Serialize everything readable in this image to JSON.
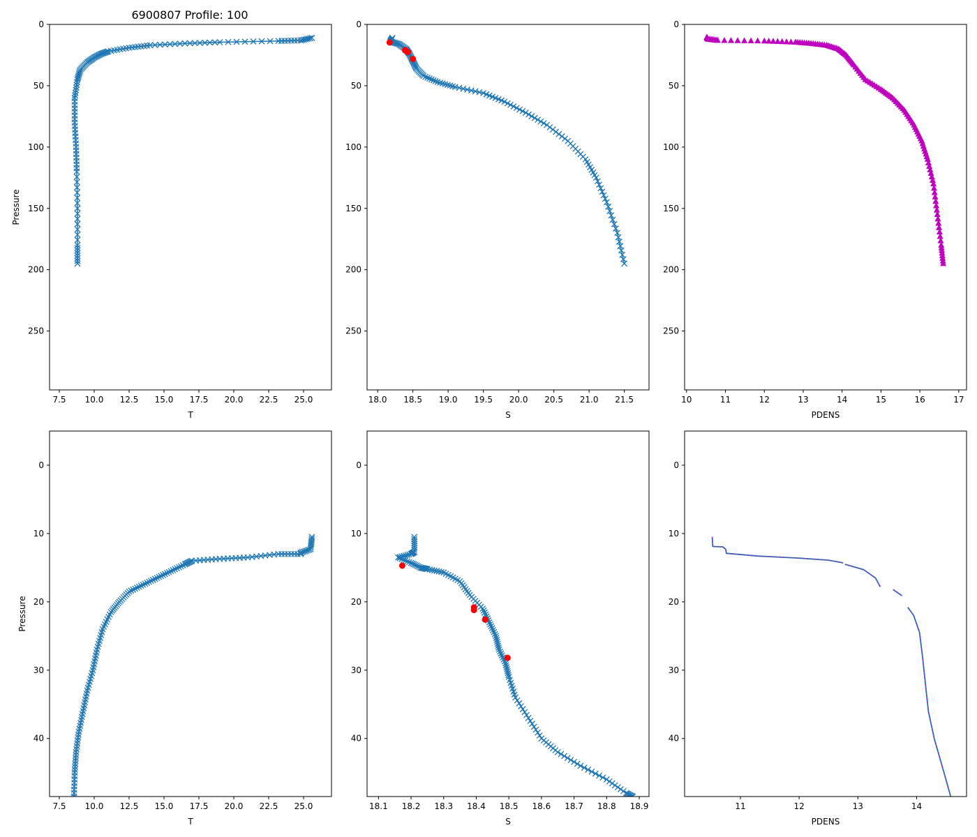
{
  "figure_title": "6900807 Profile: 100",
  "colors": {
    "series": "#1f77b4",
    "flag": "#ff0000",
    "density": "#bf00bf"
  },
  "chart_data": [
    {
      "type": "line",
      "panel": "top-left",
      "marker": "x",
      "xlabel": "T",
      "ylabel": "Pressure",
      "xlim": [
        6.8,
        27.0
      ],
      "ylim": [
        298,
        0
      ],
      "y_inverted": true,
      "xticks": [
        7.5,
        10.0,
        12.5,
        15.0,
        17.5,
        20.0,
        22.5,
        25.0
      ],
      "xtick_labels": [
        "7.5",
        "10.0",
        "12.5",
        "15.0",
        "17.5",
        "20.0",
        "22.5",
        "25.0"
      ],
      "yticks": [
        0,
        50,
        100,
        150,
        200,
        250
      ],
      "ytick_labels": [
        "0",
        "50",
        "100",
        "150",
        "200",
        "250"
      ],
      "series": [
        {
          "name": "T",
          "x": [
            25.6,
            24.8,
            23.2,
            19.0,
            16.5,
            14.0,
            12.5,
            11.0,
            10.5,
            10.0,
            9.5,
            9.0,
            8.8,
            8.6,
            8.6,
            8.7,
            8.75,
            8.8,
            8.8,
            8.8
          ],
          "y": [
            11,
            13,
            13.5,
            14.5,
            15.5,
            17,
            19,
            22,
            24,
            27,
            31,
            37,
            45,
            60,
            80,
            100,
            120,
            150,
            180,
            195
          ]
        }
      ]
    },
    {
      "type": "line",
      "panel": "top-middle",
      "marker": "x",
      "xlabel": "S",
      "ylabel": "",
      "xlim": [
        17.85,
        21.85
      ],
      "ylim": [
        298,
        0
      ],
      "y_inverted": true,
      "xticks": [
        18.0,
        18.5,
        19.0,
        19.5,
        20.0,
        20.5,
        21.0,
        21.5
      ],
      "xtick_labels": [
        "18.0",
        "18.5",
        "19.0",
        "19.5",
        "20.0",
        "20.5",
        "21.0",
        "21.5"
      ],
      "yticks": [
        0,
        50,
        100,
        150,
        200,
        250
      ],
      "ytick_labels": [
        "0",
        "50",
        "100",
        "150",
        "200",
        "250"
      ],
      "series": [
        {
          "name": "S",
          "x": [
            18.21,
            18.18,
            18.3,
            18.4,
            18.45,
            18.5,
            18.55,
            18.65,
            18.85,
            19.1,
            19.5,
            19.8,
            20.1,
            20.4,
            20.7,
            20.95,
            21.1,
            21.25,
            21.4,
            21.5
          ],
          "y": [
            11,
            14,
            16,
            20,
            24,
            30,
            36,
            42,
            47,
            51,
            56,
            63,
            72,
            82,
            95,
            110,
            125,
            145,
            170,
            195
          ]
        }
      ],
      "flags": {
        "name": "flagged",
        "x": [
          18.17,
          18.39,
          18.39,
          18.43,
          18.5
        ],
        "y": [
          14.7,
          20.8,
          21.2,
          22.6,
          28.2
        ]
      }
    },
    {
      "type": "scatter",
      "panel": "top-right",
      "marker": "triangle",
      "xlabel": "PDENS",
      "ylabel": "",
      "xlim": [
        9.95,
        17.2
      ],
      "ylim": [
        298,
        0
      ],
      "y_inverted": true,
      "xticks": [
        10,
        11,
        12,
        13,
        14,
        15,
        16,
        17
      ],
      "xtick_labels": [
        "10",
        "11",
        "12",
        "13",
        "14",
        "15",
        "16",
        "17"
      ],
      "yticks": [
        0,
        50,
        100,
        150,
        200,
        250
      ],
      "ytick_labels": [
        "0",
        "50",
        "100",
        "150",
        "200",
        "250"
      ],
      "series": [
        {
          "name": "PDENS",
          "x": [
            10.52,
            10.55,
            10.8,
            12.0,
            12.8,
            13.2,
            13.6,
            13.9,
            14.1,
            14.3,
            14.6,
            15.0,
            15.3,
            15.6,
            15.85,
            16.05,
            16.2,
            16.35,
            16.45,
            16.55,
            16.6
          ],
          "y": [
            10.5,
            12,
            13,
            13.5,
            14.5,
            15.5,
            17,
            20,
            25,
            33,
            45,
            53,
            60,
            70,
            82,
            95,
            110,
            130,
            155,
            180,
            195
          ]
        }
      ]
    },
    {
      "type": "line",
      "panel": "bottom-left",
      "marker": "x",
      "xlabel": "T",
      "ylabel": "Pressure",
      "xlim": [
        6.8,
        27.0
      ],
      "ylim": [
        48.5,
        -5.0
      ],
      "y_inverted": true,
      "xticks": [
        7.5,
        10.0,
        12.5,
        15.0,
        17.5,
        20.0,
        22.5,
        25.0
      ],
      "xtick_labels": [
        "7.5",
        "10.0",
        "12.5",
        "15.0",
        "17.5",
        "20.0",
        "22.5",
        "25.0"
      ],
      "yticks": [
        0,
        10,
        20,
        30,
        40
      ],
      "ytick_labels": [
        "0",
        "10",
        "20",
        "30",
        "40"
      ],
      "series": [
        {
          "name": "T",
          "x": [
            25.6,
            25.5,
            24.8,
            24.8,
            23.2,
            21.0,
            19.0,
            17.0,
            16.5,
            15.5,
            14.5,
            13.5,
            12.5,
            11.8,
            11.2,
            10.6,
            10.2,
            9.9,
            9.5,
            9.2,
            8.9,
            8.7,
            8.6,
            8.55
          ],
          "y": [
            10.5,
            12.3,
            12.8,
            13.0,
            13.0,
            13.5,
            13.7,
            14.0,
            14.5,
            15.5,
            16.5,
            17.5,
            18.5,
            20.0,
            21.5,
            24.0,
            27.0,
            30.0,
            33.0,
            36.0,
            39.0,
            42.0,
            45.0,
            48.5
          ]
        }
      ]
    },
    {
      "type": "line",
      "panel": "bottom-middle",
      "marker": "x",
      "xlabel": "S",
      "ylabel": "",
      "xlim": [
        18.065,
        18.93
      ],
      "ylim": [
        48.5,
        -5.0
      ],
      "y_inverted": true,
      "xticks": [
        18.1,
        18.2,
        18.3,
        18.4,
        18.5,
        18.6,
        18.7,
        18.8,
        18.9
      ],
      "xtick_labels": [
        "18.1",
        "18.2",
        "18.3",
        "18.4",
        "18.5",
        "18.6",
        "18.7",
        "18.8",
        "18.9"
      ],
      "yticks": [
        0,
        10,
        20,
        30,
        40
      ],
      "ytick_labels": [
        "0",
        "10",
        "20",
        "30",
        "40"
      ],
      "series": [
        {
          "name": "S",
          "x": [
            18.21,
            18.21,
            18.2,
            18.16,
            18.2,
            18.23,
            18.25,
            18.3,
            18.35,
            18.38,
            18.42,
            18.44,
            18.46,
            18.47,
            18.49,
            18.5,
            18.52,
            18.56,
            18.6,
            18.65,
            18.72,
            18.8,
            18.86,
            18.88
          ],
          "y": [
            10.5,
            12.7,
            13.0,
            13.5,
            14.3,
            15.0,
            15.2,
            15.7,
            17.0,
            19.0,
            21.0,
            23.0,
            25.0,
            27.0,
            29.0,
            31.0,
            34.0,
            37.0,
            40.0,
            42.0,
            44.0,
            46.0,
            48.0,
            48.5
          ]
        }
      ],
      "flags": {
        "name": "flagged",
        "x": [
          18.173,
          18.393,
          18.393,
          18.427,
          18.496
        ],
        "y": [
          14.7,
          20.8,
          21.2,
          22.6,
          28.2
        ]
      }
    },
    {
      "type": "line",
      "panel": "bottom-right",
      "marker": "none",
      "xlabel": "PDENS",
      "ylabel": "",
      "xlim": [
        10.05,
        14.85
      ],
      "ylim": [
        48.5,
        -5.0
      ],
      "y_inverted": true,
      "xticks": [
        11,
        12,
        13,
        14
      ],
      "xtick_labels": [
        "11",
        "12",
        "13",
        "14"
      ],
      "yticks": [
        0,
        10,
        20,
        30,
        40
      ],
      "ytick_labels": [
        "0",
        "10",
        "20",
        "30",
        "40"
      ],
      "series": [
        {
          "name": "PDENS",
          "x": [
            10.52,
            10.53,
            10.7,
            10.75,
            10.76,
            11.3,
            12.0,
            12.5,
            12.75
          ],
          "y": [
            10.5,
            11.9,
            11.95,
            12.3,
            12.9,
            13.3,
            13.6,
            13.9,
            14.3
          ]
        },
        {
          "name": "PDENS",
          "x": [
            12.78,
            13.1,
            13.3,
            13.38
          ],
          "y": [
            14.5,
            15.3,
            16.5,
            17.8
          ]
        },
        {
          "name": "PDENS",
          "x": [
            13.6,
            13.75
          ],
          "y": [
            18.2,
            19.1
          ]
        },
        {
          "name": "PDENS",
          "x": [
            13.85,
            13.95,
            14.05,
            14.1,
            14.15,
            14.2,
            14.3,
            14.4,
            14.5,
            14.58
          ],
          "y": [
            20.8,
            22.0,
            24.5,
            28.0,
            32.0,
            36.0,
            40.0,
            43.0,
            46.0,
            48.5
          ]
        }
      ]
    }
  ]
}
